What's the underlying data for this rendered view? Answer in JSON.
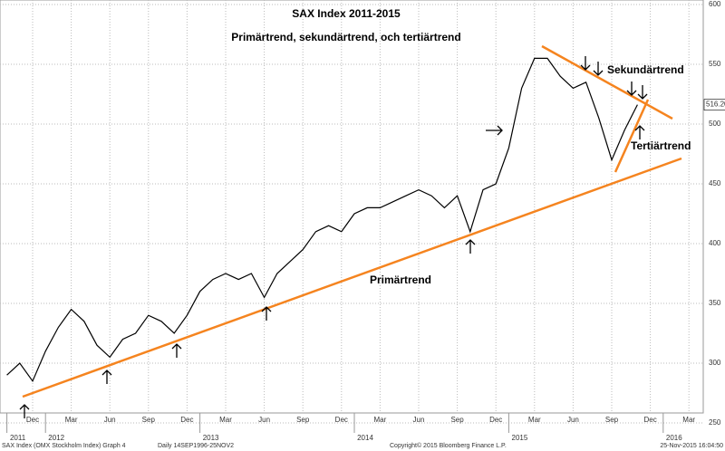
{
  "chart_data": {
    "type": "line",
    "title": "SAX Index 2011-2015",
    "subtitle": "Primärtrend, sekundärtrend, och tertiärtrend",
    "annotations": [
      "Primärtrend",
      "Sekundärtrend",
      "Tertiärtrend"
    ],
    "footer": [
      "SAX Index (OMX Stockholm Index) Graph 4",
      "Daily 14SEP1996-25NOV2",
      "Copyright© 2015 Bloomberg Finance L.P.",
      "25-Nov-2015 16:04:50"
    ],
    "x": [
      "2011-10",
      "2011-11",
      "2011-12",
      "2012-01",
      "2012-02",
      "2012-03",
      "2012-04",
      "2012-05",
      "2012-06",
      "2012-07",
      "2012-08",
      "2012-09",
      "2012-10",
      "2012-11",
      "2012-12",
      "2013-01",
      "2013-02",
      "2013-03",
      "2013-04",
      "2013-05",
      "2013-06",
      "2013-07",
      "2013-08",
      "2013-09",
      "2013-10",
      "2013-11",
      "2013-12",
      "2014-01",
      "2014-02",
      "2014-03",
      "2014-04",
      "2014-05",
      "2014-06",
      "2014-07",
      "2014-08",
      "2014-09",
      "2014-10",
      "2014-11",
      "2014-12",
      "2015-01",
      "2015-02",
      "2015-03",
      "2015-04",
      "2015-05",
      "2015-06",
      "2015-07",
      "2015-08",
      "2015-09",
      "2015-10",
      "2015-11"
    ],
    "series": [
      {
        "name": "SAX Index",
        "color": "#000000",
        "values": [
          290,
          300,
          285,
          310,
          330,
          345,
          335,
          315,
          305,
          320,
          325,
          340,
          335,
          325,
          340,
          360,
          370,
          375,
          370,
          375,
          355,
          375,
          385,
          395,
          410,
          415,
          410,
          425,
          430,
          430,
          435,
          440,
          445,
          440,
          430,
          440,
          410,
          445,
          450,
          480,
          530,
          555,
          555,
          540,
          530,
          535,
          505,
          470,
          495,
          516.2
        ],
        "value_labels": [
          null,
          null,
          null,
          null,
          null,
          null,
          null,
          null,
          null,
          null,
          null,
          null,
          null,
          null,
          null,
          null,
          null,
          null,
          null,
          null,
          null,
          null,
          null,
          null,
          null,
          null,
          null,
          null,
          null,
          null,
          null,
          null,
          null,
          null,
          null,
          null,
          null,
          null,
          null,
          null,
          null,
          null,
          null,
          null,
          null,
          null,
          null,
          null,
          null,
          "516.20"
        ]
      }
    ],
    "ylim": [
      250,
      600
    ],
    "yticks": [
      250,
      300,
      350,
      400,
      450,
      500,
      550,
      600
    ],
    "xticks": [
      {
        "value": "2011-12",
        "label": "Dec"
      },
      {
        "value": "2012-03",
        "label": "Mar"
      },
      {
        "value": "2012-06",
        "label": "Jun"
      },
      {
        "value": "2012-09",
        "label": "Sep"
      },
      {
        "value": "2012-12",
        "label": "Dec"
      },
      {
        "value": "2013-03",
        "label": "Mar"
      },
      {
        "value": "2013-06",
        "label": "Jun"
      },
      {
        "value": "2013-09",
        "label": "Sep"
      },
      {
        "value": "2013-12",
        "label": "Dec"
      },
      {
        "value": "2014-03",
        "label": "Mar"
      },
      {
        "value": "2014-06",
        "label": "Jun"
      },
      {
        "value": "2014-09",
        "label": "Sep"
      },
      {
        "value": "2014-12",
        "label": "Dec"
      },
      {
        "value": "2015-03",
        "label": "Mar"
      },
      {
        "value": "2015-06",
        "label": "Jun"
      },
      {
        "value": "2015-09",
        "label": "Sep"
      },
      {
        "value": "2015-12",
        "label": "Dec"
      },
      {
        "value": "2016-03",
        "label": "Mar"
      }
    ],
    "year_ticks": [
      {
        "value": "2011-10",
        "label": "2011"
      },
      {
        "value": "2012-01",
        "label": "2012"
      },
      {
        "value": "2013-01",
        "label": "2013"
      },
      {
        "value": "2014-01",
        "label": "2014"
      },
      {
        "value": "2015-01",
        "label": "2015"
      },
      {
        "value": "2016-01",
        "label": "2016"
      }
    ],
    "grid": true
  }
}
